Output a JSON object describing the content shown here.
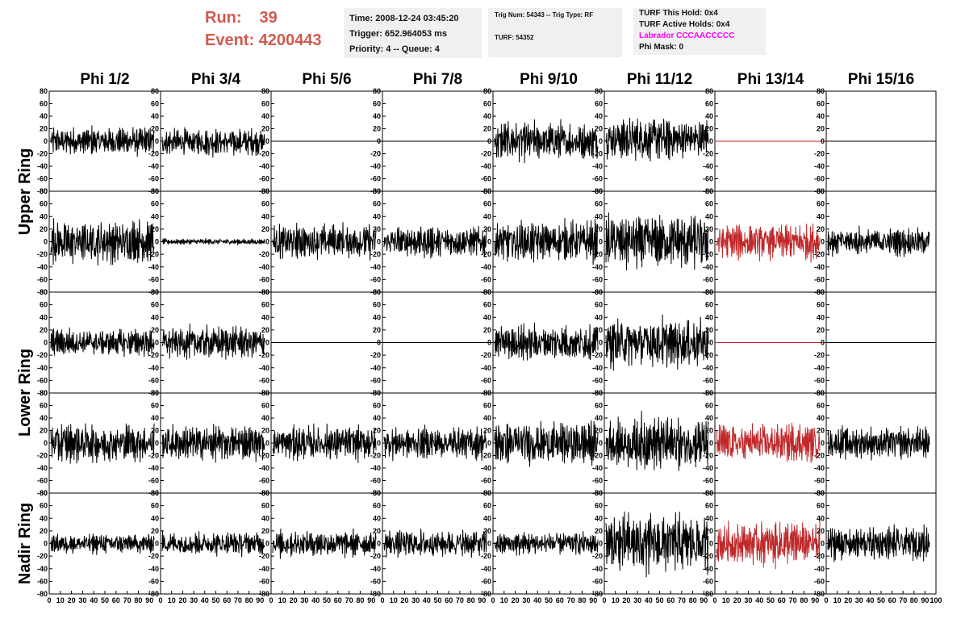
{
  "header": {
    "run_label": "Run:",
    "run_value": "39",
    "event_label": "Event:",
    "event_value": "4200443",
    "time": "Time: 2008-12-24 03:45:20",
    "trigger": "Trigger: 652.964053 ms",
    "priority": "Priority: 4 -- Queue: 4",
    "trig_num": "Trig Num: 54343 -- Trig Type: RF",
    "turf": "TURF: 54352",
    "turf_this_hold": "TURF This Hold: 0x4",
    "turf_active_holds": "TURF Active Holds: 0x4",
    "labrador": "Labrador CCCAACCCCC",
    "phi_mask": "Phi Mask: 0",
    "run_color": "#d05a4e",
    "labrador_color": "#ff00ff"
  },
  "chart_data": {
    "type": "line",
    "columns": [
      "Phi 1/2",
      "Phi 3/4",
      "Phi 5/6",
      "Phi 7/8",
      "Phi 9/10",
      "Phi 11/12",
      "Phi 13/14",
      "Phi 15/16"
    ],
    "row_groups": [
      "Upper Ring",
      "Lower Ring",
      "Nadir Ring"
    ],
    "ylim": [
      -80,
      80
    ],
    "y_ticks": [
      80,
      60,
      40,
      20,
      0,
      -20,
      -40,
      -60,
      -80
    ],
    "xlim": [
      0,
      100
    ],
    "x_ticks": [
      0,
      10,
      20,
      30,
      40,
      50,
      60,
      70,
      80,
      90,
      100
    ],
    "trace_color": "#000000",
    "highlight_color": "#c0282a",
    "highlight_column": "Phi 13/14",
    "panels": [
      [
        {
          "amp": 15,
          "bias": 0
        },
        {
          "amp": 14,
          "bias": -2
        },
        {
          "amp": 0,
          "bias": 0
        },
        {
          "amp": 0,
          "bias": 0
        },
        {
          "amp": 20,
          "bias": 0
        },
        {
          "amp": 22,
          "bias": 5
        },
        {
          "amp": 0,
          "bias": 0
        },
        {
          "amp": 0,
          "bias": 0
        }
      ],
      [
        {
          "amp": 22,
          "bias": 0
        },
        {
          "amp": 3,
          "bias": 0
        },
        {
          "amp": 18,
          "bias": 0
        },
        {
          "amp": 16,
          "bias": 0
        },
        {
          "amp": 20,
          "bias": 0
        },
        {
          "amp": 28,
          "bias": 0
        },
        {
          "amp": 18,
          "bias": 0
        },
        {
          "amp": 14,
          "bias": 0
        }
      ],
      [
        {
          "amp": 14,
          "bias": 0
        },
        {
          "amp": 16,
          "bias": 0
        },
        {
          "amp": 0,
          "bias": 0
        },
        {
          "amp": 0,
          "bias": 0
        },
        {
          "amp": 18,
          "bias": 0
        },
        {
          "amp": 25,
          "bias": 0
        },
        {
          "amp": 0,
          "bias": 0
        },
        {
          "amp": 0,
          "bias": 0
        }
      ],
      [
        {
          "amp": 20,
          "bias": 0
        },
        {
          "amp": 18,
          "bias": 0
        },
        {
          "amp": 18,
          "bias": 0
        },
        {
          "amp": 16,
          "bias": 0
        },
        {
          "amp": 22,
          "bias": 0
        },
        {
          "amp": 28,
          "bias": 0
        },
        {
          "amp": 20,
          "bias": 0
        },
        {
          "amp": 16,
          "bias": 0
        }
      ],
      [
        {
          "amp": 10,
          "bias": 0
        },
        {
          "amp": 12,
          "bias": 0
        },
        {
          "amp": 14,
          "bias": 0
        },
        {
          "amp": 14,
          "bias": 0
        },
        {
          "amp": 12,
          "bias": 0
        },
        {
          "amp": 30,
          "bias": 0
        },
        {
          "amp": 22,
          "bias": 0
        },
        {
          "amp": 18,
          "bias": 0
        }
      ]
    ]
  }
}
